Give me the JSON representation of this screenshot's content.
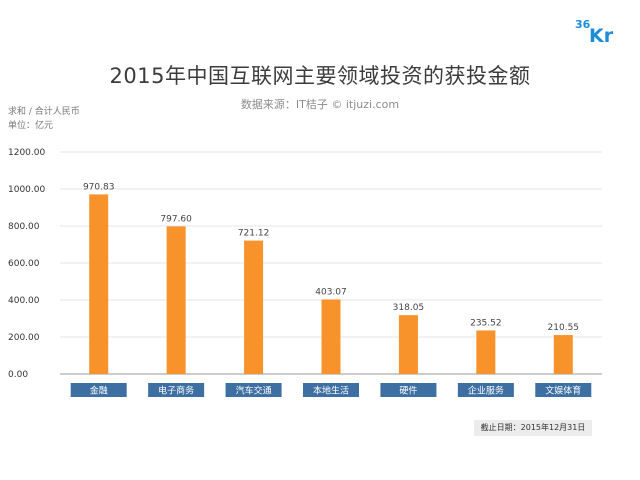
{
  "header": {
    "title": "2015年中国互联网主要领域投资的获投金额",
    "subtitle": "数据来源：IT桔子 © itjuzi.com",
    "meta_line1": "求和 / 合计人民币",
    "meta_line2": "单位：亿元",
    "logo_text": "36Kr"
  },
  "footer": {
    "note": "截止日期：2015年12月31日"
  },
  "colors": {
    "bar": "#f8922a",
    "category_bg": "#3d6fa3",
    "category_text": "#ffffff"
  },
  "chart_data": {
    "type": "bar",
    "title": "2015年中国互联网主要领域投资的获投金额",
    "categories": [
      "金融",
      "电子商务",
      "汽车交通",
      "本地生活",
      "硬件",
      "企业服务",
      "文娱体育"
    ],
    "values": [
      970.83,
      797.6,
      721.12,
      403.07,
      318.05,
      235.52,
      210.55
    ],
    "value_labels": [
      "970.83",
      "797.60",
      "721.12",
      "403.07",
      "318.05",
      "235.52",
      "210.55"
    ],
    "ylim": [
      0,
      1200
    ],
    "yticks": [
      "0.00",
      "200.00",
      "400.00",
      "600.00",
      "800.00",
      "1000.00",
      "1200.00"
    ],
    "grid": true
  }
}
